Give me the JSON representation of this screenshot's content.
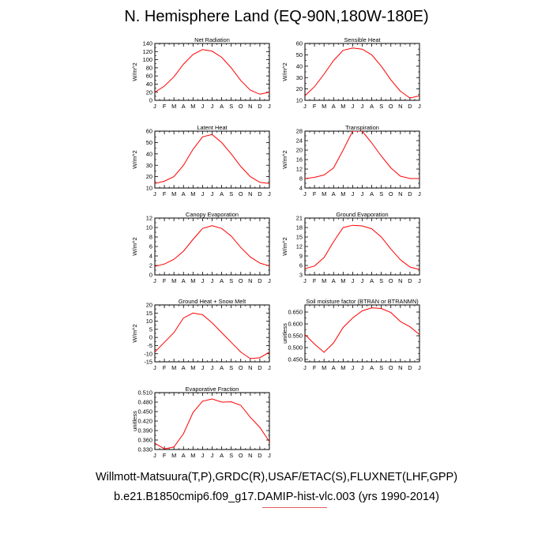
{
  "title": "N. Hemisphere Land (EQ-90N,180W-180E)",
  "footer": {
    "line1": "Willmott-Matsuura(T,P),GRDC(R),USAF/ETAC(S),FLUXNET(LHF,GPP)",
    "line2": "b.e21.B1850cmip6.f09_g17.DAMIP-hist-vlc.003 (yrs 1990-2014)"
  },
  "colors": {
    "series": "#ff0000",
    "axis": "#000000"
  },
  "chart_data": [
    {
      "type": "line",
      "title": "Net Radiation",
      "ylabel": "W/m^2",
      "ylim": [
        0,
        140
      ],
      "yticks": [
        "0",
        "20",
        "40",
        "60",
        "80",
        "100",
        "120",
        "140"
      ],
      "categories": [
        "J",
        "F",
        "M",
        "A",
        "M",
        "J",
        "J",
        "A",
        "S",
        "O",
        "N",
        "D",
        "J"
      ],
      "series": [
        {
          "name": "Net Radiation",
          "values": [
            20,
            35,
            58,
            89,
            113,
            125,
            121,
            106,
            80,
            49,
            25,
            15,
            20
          ]
        }
      ]
    },
    {
      "type": "line",
      "title": "Sensible Heat",
      "ylabel": "W/m^2",
      "ylim": [
        10,
        60
      ],
      "yticks": [
        "10",
        "20",
        "30",
        "40",
        "50",
        "60"
      ],
      "categories": [
        "J",
        "F",
        "M",
        "A",
        "M",
        "J",
        "J",
        "A",
        "S",
        "O",
        "N",
        "D",
        "J"
      ],
      "series": [
        {
          "name": "Sensible Heat",
          "values": [
            14,
            22,
            33,
            45,
            54,
            56,
            55,
            50,
            40,
            28,
            18,
            12,
            14
          ]
        }
      ]
    },
    {
      "type": "line",
      "title": "Latent Heat",
      "ylabel": "W/m^2",
      "ylim": [
        10,
        60
      ],
      "yticks": [
        "10",
        "20",
        "30",
        "40",
        "50",
        "60"
      ],
      "categories": [
        "J",
        "F",
        "M",
        "A",
        "M",
        "J",
        "J",
        "A",
        "S",
        "O",
        "N",
        "D",
        "J"
      ],
      "series": [
        {
          "name": "Latent Heat",
          "values": [
            14,
            16,
            20,
            30,
            44,
            55,
            57,
            50,
            40,
            29,
            20,
            15,
            14
          ]
        }
      ]
    },
    {
      "type": "line",
      "title": "Transpiration",
      "ylabel": "W/m^2",
      "ylim": [
        4,
        28
      ],
      "yticks": [
        "4",
        "8",
        "12",
        "16",
        "20",
        "24",
        "28"
      ],
      "categories": [
        "J",
        "F",
        "M",
        "A",
        "M",
        "J",
        "J",
        "A",
        "S",
        "O",
        "N",
        "D",
        "J"
      ],
      "series": [
        {
          "name": "Transpiration",
          "values": [
            8,
            8.5,
            9.5,
            12.5,
            20,
            28,
            28,
            23,
            17.5,
            12.5,
            9,
            8,
            8
          ]
        }
      ]
    },
    {
      "type": "line",
      "title": "Canopy Evaporation",
      "ylabel": "W/m^2",
      "ylim": [
        0,
        12
      ],
      "yticks": [
        "0",
        "2",
        "4",
        "6",
        "8",
        "10",
        "12"
      ],
      "categories": [
        "J",
        "F",
        "M",
        "A",
        "M",
        "J",
        "J",
        "A",
        "S",
        "O",
        "N",
        "D",
        "J"
      ],
      "series": [
        {
          "name": "Canopy Evaporation",
          "values": [
            1.8,
            2.3,
            3.3,
            5.0,
            7.5,
            9.8,
            10.4,
            9.8,
            8.2,
            5.8,
            3.8,
            2.5,
            1.9
          ]
        }
      ]
    },
    {
      "type": "line",
      "title": "Ground Evaporation",
      "ylabel": "W/m^2",
      "ylim": [
        3,
        21
      ],
      "yticks": [
        "3",
        "6",
        "9",
        "12",
        "15",
        "18",
        "21"
      ],
      "categories": [
        "J",
        "F",
        "M",
        "A",
        "M",
        "J",
        "J",
        "A",
        "S",
        "O",
        "N",
        "D",
        "J"
      ],
      "series": [
        {
          "name": "Ground Evaporation",
          "values": [
            5,
            5.8,
            8.5,
            13.5,
            18,
            18.7,
            18.5,
            17.6,
            15,
            11.2,
            7.8,
            5.5,
            4.7
          ]
        }
      ]
    },
    {
      "type": "line",
      "title": "Ground Heat + Snow Melt",
      "ylabel": "W/m^2",
      "ylim": [
        -15,
        20
      ],
      "yticks": [
        "-15",
        "-10",
        "-5",
        "0",
        "5",
        "10",
        "15",
        "20"
      ],
      "categories": [
        "J",
        "F",
        "M",
        "A",
        "M",
        "J",
        "J",
        "A",
        "S",
        "O",
        "N",
        "D",
        "J"
      ],
      "series": [
        {
          "name": "Ground Heat + Snow Melt",
          "values": [
            -9,
            -3,
            3,
            12,
            15,
            14,
            9,
            3,
            -3,
            -9,
            -13,
            -12.5,
            -9
          ]
        }
      ]
    },
    {
      "type": "line",
      "title": "Soil moisture factor (BTRAN or BTRANMN)",
      "ylabel": "unitless",
      "ylim": [
        0.44,
        0.68
      ],
      "yticks": [
        "0.450",
        "0.500",
        "0.550",
        "0.600",
        "0.650"
      ],
      "categories": [
        "J",
        "F",
        "M",
        "A",
        "M",
        "J",
        "J",
        "A",
        "S",
        "O",
        "N",
        "D",
        "J"
      ],
      "series": [
        {
          "name": "Soil moisture factor",
          "values": [
            0.555,
            0.515,
            0.48,
            0.52,
            0.585,
            0.625,
            0.655,
            0.668,
            0.665,
            0.648,
            0.61,
            0.588,
            0.555
          ]
        }
      ]
    },
    {
      "type": "line",
      "title": "Evaporative Fraction",
      "ylabel": "unitless",
      "ylim": [
        0.33,
        0.51
      ],
      "yticks": [
        "0.330",
        "0.360",
        "0.390",
        "0.420",
        "0.450",
        "0.480",
        "0.510"
      ],
      "categories": [
        "J",
        "F",
        "M",
        "A",
        "M",
        "J",
        "J",
        "A",
        "S",
        "O",
        "N",
        "D",
        "J"
      ],
      "series": [
        {
          "name": "Evaporative Fraction",
          "values": [
            0.35,
            0.332,
            0.338,
            0.38,
            0.447,
            0.483,
            0.49,
            0.48,
            0.481,
            0.47,
            0.432,
            0.4,
            0.355
          ]
        }
      ]
    }
  ]
}
